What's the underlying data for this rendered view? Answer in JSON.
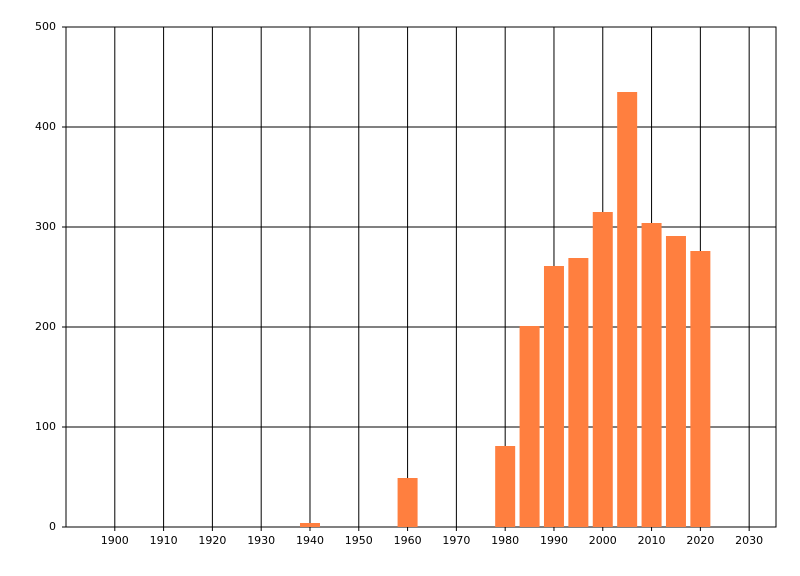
{
  "chart_data": {
    "type": "bar",
    "x": [
      1940,
      1960,
      1980,
      1985,
      1990,
      1995,
      2000,
      2005,
      2010,
      2015,
      2020
    ],
    "values": [
      4,
      49,
      81,
      201,
      261,
      269,
      315,
      435,
      304,
      291,
      276
    ],
    "color": "#ff7f3f",
    "xlim": [
      1890,
      2035.5
    ],
    "xticks": [
      1900,
      1910,
      1920,
      1930,
      1940,
      1950,
      1960,
      1970,
      1980,
      1990,
      2000,
      2010,
      2020,
      2030
    ],
    "ylim": [
      0,
      500
    ],
    "yticks": [
      0,
      100,
      200,
      300,
      400,
      500
    ],
    "grid": true
  }
}
